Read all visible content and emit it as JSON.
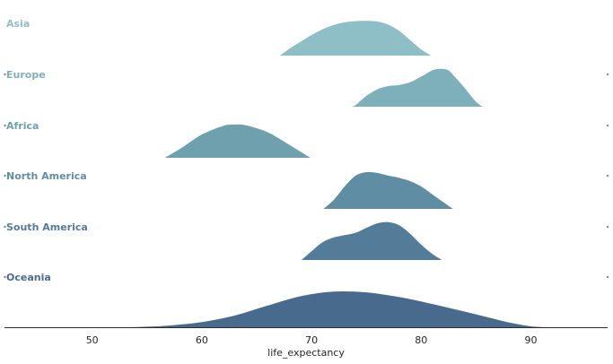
{
  "chart_data": {
    "type": "area",
    "subtype": "ridgeline",
    "title": "",
    "xlabel": "life_expectancy",
    "ylabel": "",
    "xlim": [
      42,
      97
    ],
    "x_ticks": [
      50,
      60,
      70,
      80,
      90
    ],
    "grid": false,
    "legend": "none",
    "series": [
      {
        "name": "Asia",
        "color": "#8fbfc6",
        "x": [
          67,
          68,
          69,
          70,
          71,
          72,
          73,
          74,
          75,
          76,
          77,
          78,
          79,
          80,
          81
        ],
        "density": [
          0.0,
          0.2,
          0.38,
          0.55,
          0.7,
          0.81,
          0.88,
          0.91,
          0.92,
          0.9,
          0.82,
          0.66,
          0.42,
          0.18,
          0.0
        ]
      },
      {
        "name": "Europe",
        "color": "#7db0bb",
        "x": [
          73.5,
          74,
          75,
          76,
          77,
          78,
          79,
          80,
          81,
          81.8,
          82.5,
          83,
          84,
          85,
          85.7
        ],
        "density": [
          0.0,
          0.06,
          0.3,
          0.47,
          0.55,
          0.58,
          0.65,
          0.8,
          0.96,
          1.0,
          0.96,
          0.82,
          0.5,
          0.15,
          0.0
        ]
      },
      {
        "name": "Africa",
        "color": "#6ea0ad",
        "x": [
          56.5,
          58,
          60,
          62,
          63,
          64,
          66,
          68,
          70
        ],
        "density": [
          0.0,
          0.25,
          0.62,
          0.85,
          0.88,
          0.86,
          0.68,
          0.35,
          0.0
        ]
      },
      {
        "name": "North America",
        "color": "#5f8ea4",
        "x": [
          71,
          72,
          73,
          74,
          75,
          76,
          77,
          78,
          79,
          80,
          81,
          82,
          83
        ],
        "density": [
          0.0,
          0.25,
          0.6,
          0.88,
          0.97,
          0.95,
          0.88,
          0.82,
          0.74,
          0.6,
          0.4,
          0.2,
          0.0
        ]
      },
      {
        "name": "South America",
        "color": "#537c99",
        "x": [
          69,
          70,
          71,
          72,
          73,
          74,
          75,
          76,
          77,
          78,
          79,
          80,
          81,
          82
        ],
        "density": [
          0.0,
          0.25,
          0.48,
          0.6,
          0.66,
          0.72,
          0.85,
          0.97,
          1.0,
          0.92,
          0.7,
          0.42,
          0.18,
          0.0
        ]
      },
      {
        "name": "Oceania",
        "color": "#486b8d",
        "x": [
          49.5,
          52,
          55,
          57,
          60,
          63,
          66,
          69,
          72,
          75,
          78,
          81,
          84,
          86,
          88,
          90,
          92,
          94
        ],
        "density": [
          0.01,
          0.01,
          0.03,
          0.06,
          0.15,
          0.32,
          0.58,
          0.82,
          0.94,
          0.92,
          0.8,
          0.62,
          0.42,
          0.28,
          0.14,
          0.04,
          0.01,
          0.0
        ]
      }
    ]
  }
}
